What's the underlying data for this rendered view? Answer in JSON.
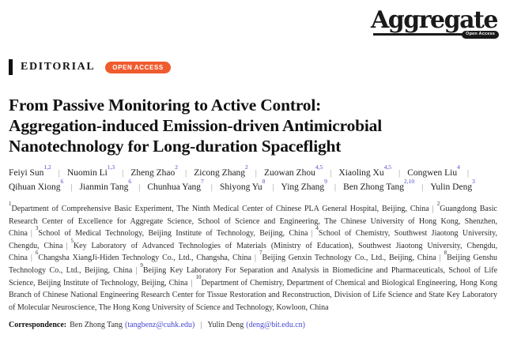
{
  "journal": {
    "logo_text": "Aggregate",
    "logo_badge": "Open Access"
  },
  "header": {
    "category": "EDITORIAL",
    "open_access_badge": "OPEN ACCESS"
  },
  "title": {
    "line1": "From Passive Monitoring to Active Control:",
    "line2": "Aggregation-induced Emission-driven Antimicrobial",
    "line3": "Nanotechnology for Long-duration Spaceflight"
  },
  "authors_row1": [
    {
      "name": "Feiyi Sun",
      "sup": "1,2"
    },
    {
      "name": "Nuomin Li",
      "sup": "1,3"
    },
    {
      "name": "Zheng Zhao",
      "sup": "2"
    },
    {
      "name": "Zicong Zhang",
      "sup": "2"
    },
    {
      "name": "Zuowan Zhou",
      "sup": "4,5"
    },
    {
      "name": "Xiaoling Xu",
      "sup": "4,5"
    },
    {
      "name": "Congwen Liu",
      "sup": "4"
    }
  ],
  "authors_row2": [
    {
      "name": "Qihuan Xiong",
      "sup": "6"
    },
    {
      "name": "Jianmin Tang",
      "sup": "6"
    },
    {
      "name": "Chunhua Yang",
      "sup": "7"
    },
    {
      "name": "Shiyong Yu",
      "sup": "8"
    },
    {
      "name": "Ying Zhang",
      "sup": "9"
    },
    {
      "name": "Ben Zhong Tang",
      "sup": "2,10"
    },
    {
      "name": "Yulin Deng",
      "sup": "3"
    }
  ],
  "affiliations": [
    {
      "num": "1",
      "text": "Department of Comprehensive Basic Experiment, The Ninth Medical Center of Chinese PLA General Hospital, Beijing, China"
    },
    {
      "num": "2",
      "text": "Guangdong Basic Research Center of Excellence for Aggregate Science, School of Science and Engineering, The Chinese University of Hong Kong, Shenzhen, China"
    },
    {
      "num": "3",
      "text": "School of Medical Technology, Beijing Institute of Technology, Beijing, China"
    },
    {
      "num": "4",
      "text": "School of Chemistry, Southwest Jiaotong University, Chengdu, China"
    },
    {
      "num": "5",
      "text": "Key Laboratory of Advanced Technologies of Materials (Ministry of Education), Southwest Jiaotong University, Chengdu, China"
    },
    {
      "num": "6",
      "text": "Changsha XiangJi-Hiden Technology Co., Ltd., Changsha, China"
    },
    {
      "num": "7",
      "text": "Beijing Genxin Technology Co., Ltd., Beijing, China"
    },
    {
      "num": "8",
      "text": "Beijing Genshu Technology Co., Ltd., Beijing, China"
    },
    {
      "num": "9",
      "text": "Beijing Key Laboratory For Separation and Analysis in Biomedicine and Pharmaceuticals, School of Life Science, Beijing Institute of Technology, Beijing, China"
    },
    {
      "num": "10",
      "text": "Department of Chemistry, Department of Chemical and Biological Engineering, Hong Kong Branch of Chinese National Engineering Research Center for Tissue Restoration and Reconstruction, Division of Life Science and State Key Laboratory of Molecular Neuroscience, The Hong Kong University of Science and Technology, Kowloon, China"
    }
  ],
  "correspondence": {
    "label": "Correspondence:",
    "entries": [
      {
        "name": "Ben Zhong Tang",
        "email_display": "(tangbenz@cuhk.edu)"
      },
      {
        "name": "Yulin Deng",
        "email_display": "(deng@bit.edu.cn)"
      }
    ]
  },
  "ui": {
    "pipe": "|"
  },
  "colors": {
    "accent_orange": "#EF5B2E",
    "link_blue": "#4848CE",
    "text_black": "#111111"
  }
}
